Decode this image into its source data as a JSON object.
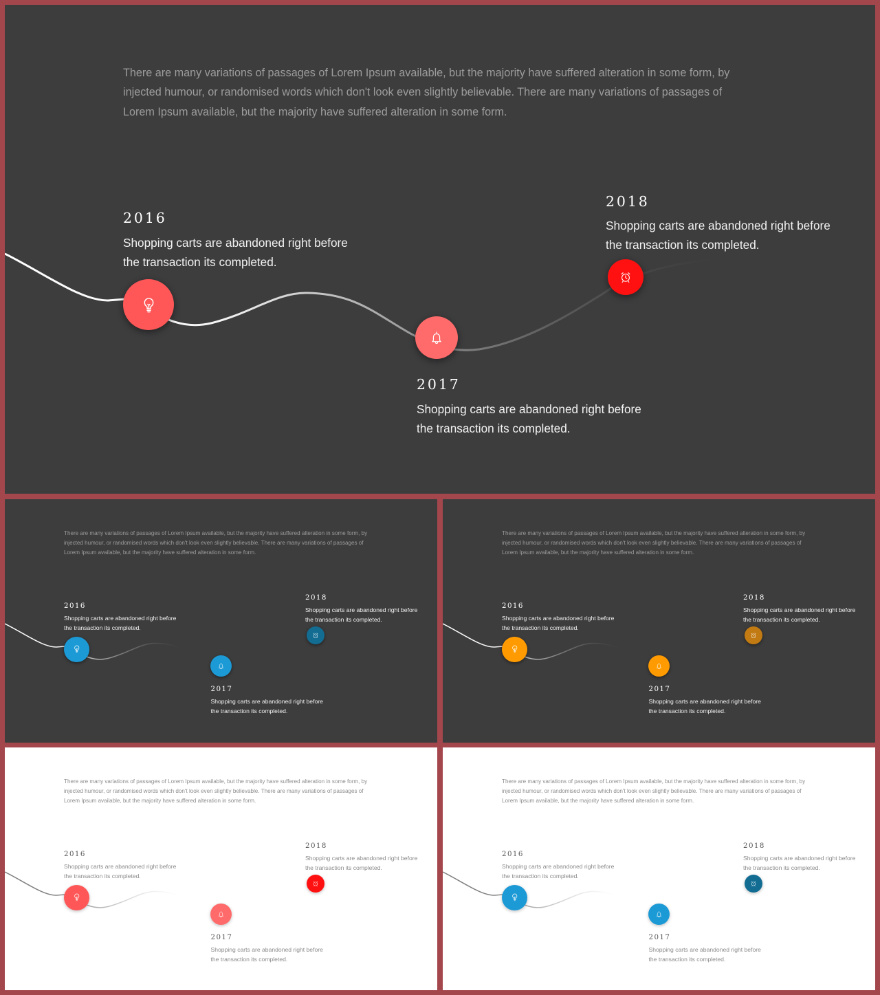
{
  "colors": {
    "frame": "#a4474d",
    "dark_bg": "#3d3d3e",
    "light_bg": "#ffffff"
  },
  "intro_text": "There are many variations of passages of Lorem Ipsum available, but the majority have suffered alteration in some form, by injected humour, or randomised words which don't look even slightly believable. There are many variations of passages of Lorem Ipsum available, but the majority have suffered alteration in some form.",
  "milestones": [
    {
      "year": "2016",
      "text": "Shopping carts are abandoned right before the transaction its completed.",
      "icon": "lightbulb-icon"
    },
    {
      "year": "2017",
      "text": "Shopping carts are abandoned right before the transaction its completed.",
      "icon": "bell-icon"
    },
    {
      "year": "2018",
      "text": "Shopping carts are abandoned right before the transaction its completed.",
      "icon": "alarm-clock-icon"
    }
  ],
  "slides": [
    {
      "theme": "dark",
      "node_colors": [
        "#ff5757",
        "#ff6a6a",
        "#ff1111"
      ]
    },
    {
      "theme": "dark",
      "node_colors": [
        "#1c9ad6",
        "#1c9ad6",
        "#136d93"
      ]
    },
    {
      "theme": "dark",
      "node_colors": [
        "#ff9b00",
        "#ff9b00",
        "#c27a12"
      ]
    },
    {
      "theme": "light",
      "node_colors": [
        "#ff5757",
        "#ff6a6a",
        "#ff1111"
      ]
    },
    {
      "theme": "light",
      "node_colors": [
        "#1c9ad6",
        "#1c9ad6",
        "#136d93"
      ]
    }
  ]
}
